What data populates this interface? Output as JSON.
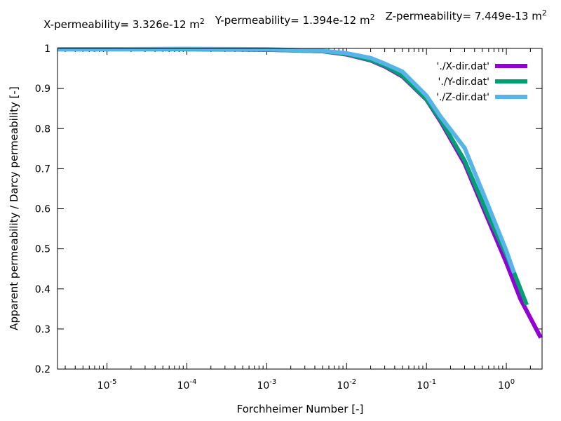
{
  "chart_data": {
    "type": "line",
    "title_parts": [
      {
        "label": "X-permeability= 3.326e-12 m",
        "sup": "2"
      },
      {
        "label": "Y-permeability= 1.394e-12 m",
        "sup": "2"
      },
      {
        "label": "Z-permeability= 7.449e-13 m",
        "sup": "2"
      }
    ],
    "xlabel": "Forchheimer Number [-]",
    "ylabel": "Apparent permeability / Darcy permeability [-]",
    "xscale": "log",
    "xlim": [
      2.4e-06,
      2.8
    ],
    "ylim": [
      0.2,
      1.0
    ],
    "grid": false,
    "legend_position": "top-right",
    "x_ticks": [
      {
        "base": "10",
        "exp": "-5",
        "value": 1e-05
      },
      {
        "base": "10",
        "exp": "-4",
        "value": 0.0001
      },
      {
        "base": "10",
        "exp": "-3",
        "value": 0.001
      },
      {
        "base": "10",
        "exp": "-2",
        "value": 0.01
      },
      {
        "base": "10",
        "exp": "-1",
        "value": 0.1
      },
      {
        "base": "10",
        "exp": "0",
        "value": 1
      }
    ],
    "y_ticks": [
      "0.2",
      "0.3",
      "0.4",
      "0.5",
      "0.6",
      "0.7",
      "0.8",
      "0.9",
      "1"
    ],
    "series": [
      {
        "name": "'./X-dir.dat'",
        "color": "#9400d3",
        "x": [
          2.4e-06,
          1e-05,
          0.0001,
          0.001,
          0.005,
          0.01,
          0.02,
          0.03,
          0.05,
          0.1,
          0.15,
          0.3,
          0.6,
          1.0,
          1.5,
          2.7
        ],
        "y": [
          0.998,
          0.998,
          0.998,
          0.997,
          0.993,
          0.985,
          0.97,
          0.955,
          0.93,
          0.872,
          0.818,
          0.713,
          0.57,
          0.465,
          0.375,
          0.278
        ]
      },
      {
        "name": "'./Y-dir.dat'",
        "color": "#009e73",
        "x": [
          2.4e-06,
          1e-05,
          0.0001,
          0.001,
          0.005,
          0.01,
          0.02,
          0.03,
          0.05,
          0.1,
          0.15,
          0.3,
          0.6,
          1.0,
          1.25,
          1.8
        ],
        "y": [
          0.998,
          0.998,
          0.998,
          0.997,
          0.993,
          0.986,
          0.971,
          0.957,
          0.932,
          0.873,
          0.822,
          0.72,
          0.58,
          0.485,
          0.44,
          0.36
        ]
      },
      {
        "name": "'./Z-dir.dat'",
        "color": "#56b4e9",
        "x": [
          2.4e-06,
          1e-05,
          0.0001,
          0.001,
          0.005,
          0.01,
          0.02,
          0.03,
          0.05,
          0.1,
          0.15,
          0.3,
          0.6,
          1.0,
          1.25
        ],
        "y": [
          0.998,
          0.998,
          0.999,
          0.998,
          0.994,
          0.988,
          0.976,
          0.962,
          0.942,
          0.882,
          0.83,
          0.752,
          0.605,
          0.495,
          0.44
        ]
      }
    ]
  }
}
